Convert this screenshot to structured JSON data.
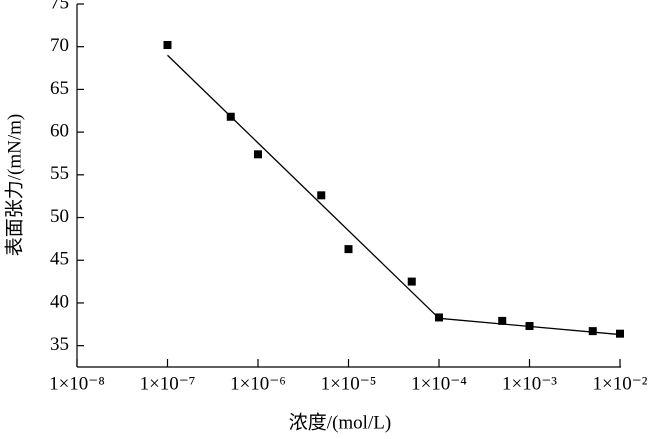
{
  "chart_data": {
    "type": "scatter",
    "x_label": "浓度/(mol/L)",
    "y_label": "表面张力/(mN/m)",
    "xscale": "log",
    "color": "#000000",
    "x": [
      1e-07,
      5e-07,
      1e-06,
      5e-06,
      1e-05,
      5e-05,
      0.0001,
      0.0005,
      0.001,
      0.005,
      0.01
    ],
    "values": [
      70.2,
      61.8,
      57.4,
      52.6,
      46.3,
      42.5,
      38.3,
      37.9,
      37.3,
      36.7,
      36.4
    ],
    "fit_lines": [
      {
        "x": [
          1e-07,
          0.0001
        ],
        "values": [
          69.0,
          38.2
        ]
      },
      {
        "x": [
          0.0001,
          0.01
        ],
        "values": [
          38.2,
          36.3
        ]
      }
    ],
    "xlim": [
      1e-08,
      0.01
    ],
    "xticks": [
      {
        "value": 1e-08,
        "label": "1×10⁻⁸"
      },
      {
        "value": 1e-07,
        "label": "1×10⁻⁷"
      },
      {
        "value": 1e-06,
        "label": "1×10⁻⁶"
      },
      {
        "value": 1e-05,
        "label": "1×10⁻⁵"
      },
      {
        "value": 0.0001,
        "label": "1×10⁻⁴"
      },
      {
        "value": 0.001,
        "label": "1×10⁻³"
      },
      {
        "value": 0.01,
        "label": "1×10⁻²"
      }
    ],
    "ylim": [
      32.5,
      75
    ],
    "yticks": [
      35,
      40,
      45,
      50,
      55,
      60,
      65,
      70,
      75
    ]
  }
}
